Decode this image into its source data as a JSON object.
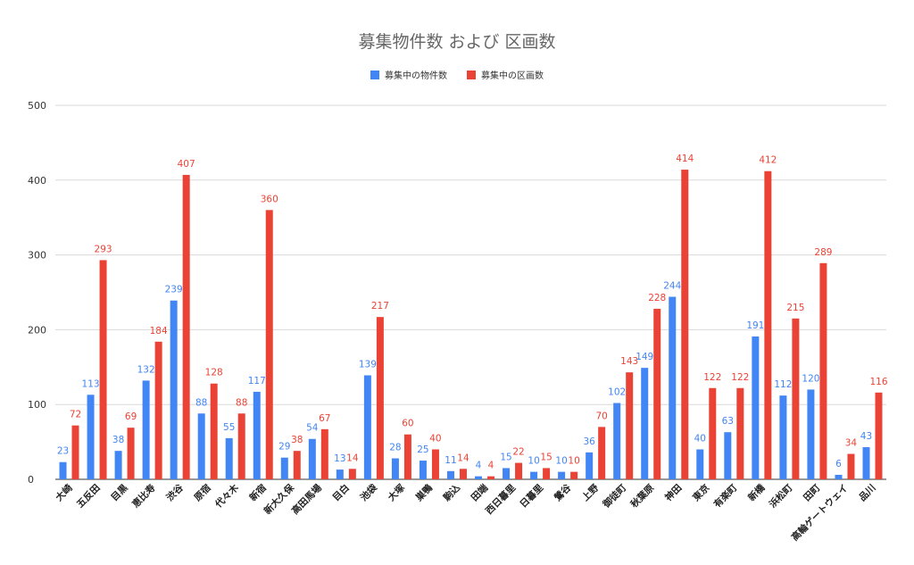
{
  "chart_data": {
    "type": "bar",
    "title": "募集物件数 および 区画数",
    "ylim": [
      0,
      500
    ],
    "yticks": [
      0,
      100,
      200,
      300,
      400,
      500
    ],
    "grid": true,
    "legend_position": "top",
    "categories": [
      "大崎",
      "五反田",
      "目黒",
      "恵比寿",
      "渋谷",
      "原宿",
      "代々木",
      "新宿",
      "新大久保",
      "高田馬場",
      "目白",
      "池袋",
      "大塚",
      "巣鴨",
      "駒込",
      "田端",
      "西日暮里",
      "日暮里",
      "鶯谷",
      "上野",
      "御徒町",
      "秋葉原",
      "神田",
      "東京",
      "有楽町",
      "新橋",
      "浜松町",
      "田町",
      "高輪ゲートウェイ",
      "品川"
    ],
    "series": [
      {
        "name": "募集中の物件数",
        "color": "#4285f4",
        "values": [
          23,
          113,
          38,
          132,
          239,
          88,
          55,
          117,
          29,
          54,
          13,
          139,
          28,
          25,
          11,
          4,
          15,
          10,
          10,
          36,
          102,
          149,
          244,
          40,
          63,
          191,
          112,
          120,
          6,
          43
        ]
      },
      {
        "name": "募集中の区画数",
        "color": "#ea4335",
        "values": [
          72,
          293,
          69,
          184,
          407,
          128,
          88,
          360,
          38,
          67,
          14,
          217,
          60,
          40,
          14,
          4,
          22,
          15,
          10,
          70,
          143,
          228,
          414,
          122,
          122,
          412,
          215,
          289,
          34,
          116
        ]
      }
    ]
  }
}
